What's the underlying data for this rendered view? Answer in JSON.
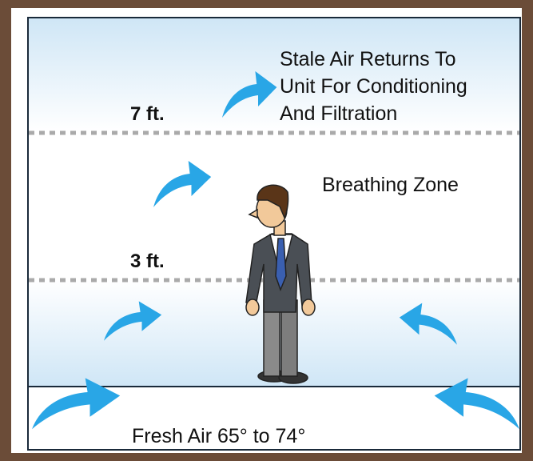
{
  "labels": {
    "upper_height": "7 ft.",
    "lower_height": "3 ft.",
    "zone": "Breathing Zone",
    "return_air": [
      "Stale Air Returns To",
      "Unit For Conditioning",
      "And Filtration"
    ],
    "supply_air": "Fresh Air 65° to 74°"
  }
}
